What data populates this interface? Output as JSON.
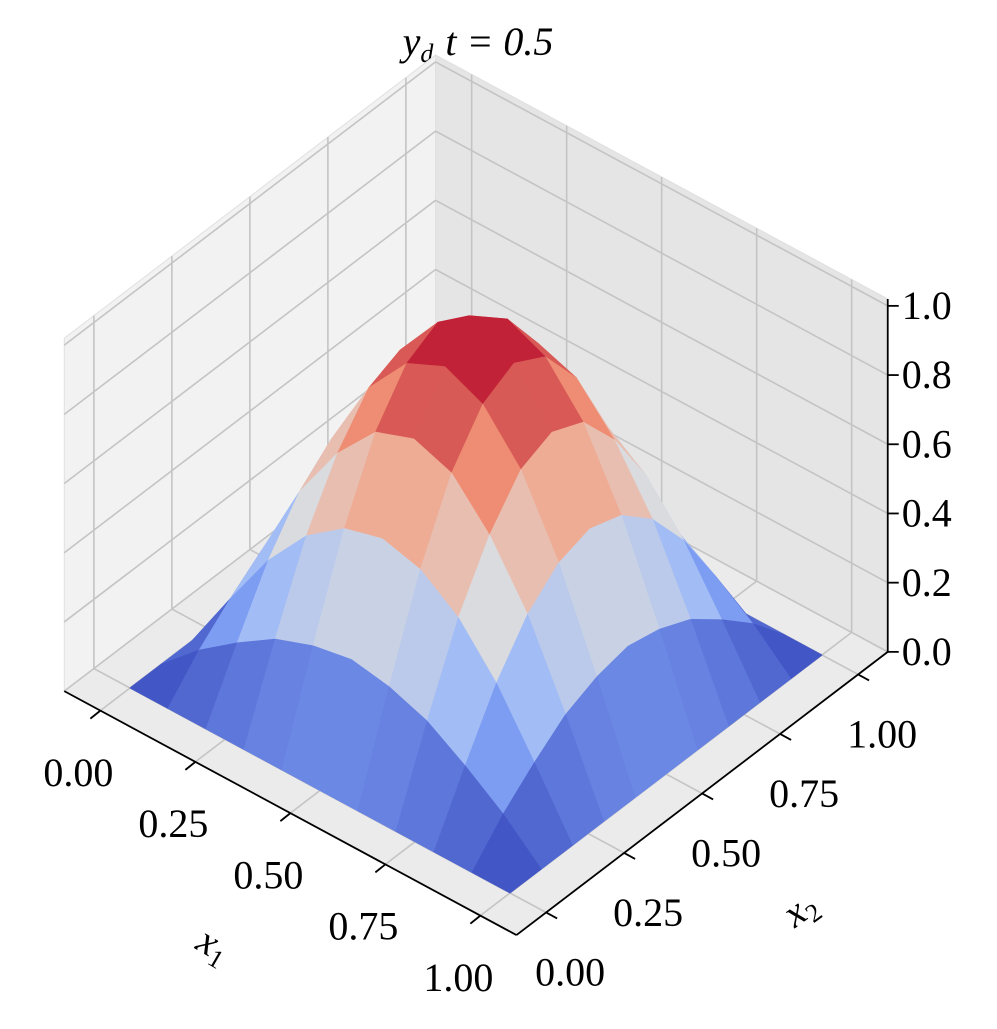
{
  "chart_data": {
    "type": "surface",
    "title": {
      "main": "y",
      "sub": "d",
      "text": "t = 0.5"
    },
    "xlabel": {
      "main": "x",
      "sub": "1"
    },
    "ylabel": {
      "main": "x",
      "sub": "2"
    },
    "x1": [
      0,
      0.1,
      0.2,
      0.3,
      0.4,
      0.5,
      0.6,
      0.7,
      0.8,
      0.9,
      1
    ],
    "x2": [
      0,
      0.1,
      0.2,
      0.3,
      0.4,
      0.5,
      0.6,
      0.7,
      0.8,
      0.9,
      1
    ],
    "z": [
      [
        0,
        0,
        0,
        0,
        0,
        0,
        0,
        0,
        0,
        0,
        0
      ],
      [
        0,
        0.1,
        0.18,
        0.25,
        0.29,
        0.31,
        0.29,
        0.25,
        0.18,
        0.1,
        0
      ],
      [
        0,
        0.18,
        0.35,
        0.48,
        0.56,
        0.59,
        0.56,
        0.48,
        0.35,
        0.18,
        0
      ],
      [
        0,
        0.25,
        0.48,
        0.65,
        0.77,
        0.81,
        0.77,
        0.65,
        0.48,
        0.25,
        0
      ],
      [
        0,
        0.29,
        0.56,
        0.77,
        0.9,
        0.95,
        0.9,
        0.77,
        0.56,
        0.29,
        0
      ],
      [
        0,
        0.31,
        0.59,
        0.81,
        0.95,
        1,
        0.95,
        0.81,
        0.59,
        0.31,
        0
      ],
      [
        0,
        0.29,
        0.56,
        0.77,
        0.9,
        0.95,
        0.9,
        0.77,
        0.56,
        0.29,
        0
      ],
      [
        0,
        0.25,
        0.48,
        0.65,
        0.77,
        0.81,
        0.77,
        0.65,
        0.48,
        0.25,
        0
      ],
      [
        0,
        0.18,
        0.35,
        0.48,
        0.56,
        0.59,
        0.56,
        0.48,
        0.35,
        0.18,
        0
      ],
      [
        0,
        0.1,
        0.18,
        0.25,
        0.29,
        0.31,
        0.29,
        0.25,
        0.18,
        0.1,
        0
      ],
      [
        0,
        0,
        0,
        0,
        0,
        0,
        0,
        0,
        0,
        0,
        0
      ]
    ],
    "xlim": [
      0,
      1
    ],
    "ylim": [
      0,
      1
    ],
    "zlim": [
      0,
      1
    ],
    "xticks": [
      {
        "value": 0,
        "label": "0.00"
      },
      {
        "value": 0.25,
        "label": "0.25"
      },
      {
        "value": 0.5,
        "label": "0.50"
      },
      {
        "value": 0.75,
        "label": "0.75"
      },
      {
        "value": 1,
        "label": "1.00"
      }
    ],
    "yticks": [
      {
        "value": 0,
        "label": "0.00"
      },
      {
        "value": 0.25,
        "label": "0.25"
      },
      {
        "value": 0.5,
        "label": "0.50"
      },
      {
        "value": 0.75,
        "label": "0.75"
      },
      {
        "value": 1,
        "label": "1.00"
      }
    ],
    "zticks": [
      {
        "value": 0,
        "label": "0.0"
      },
      {
        "value": 0.2,
        "label": "0.2"
      },
      {
        "value": 0.4,
        "label": "0.4"
      },
      {
        "value": 0.6,
        "label": "0.6"
      },
      {
        "value": 0.8,
        "label": "0.8"
      },
      {
        "value": 1,
        "label": "1.0"
      }
    ],
    "colormap": "coolwarm",
    "grid": true
  }
}
